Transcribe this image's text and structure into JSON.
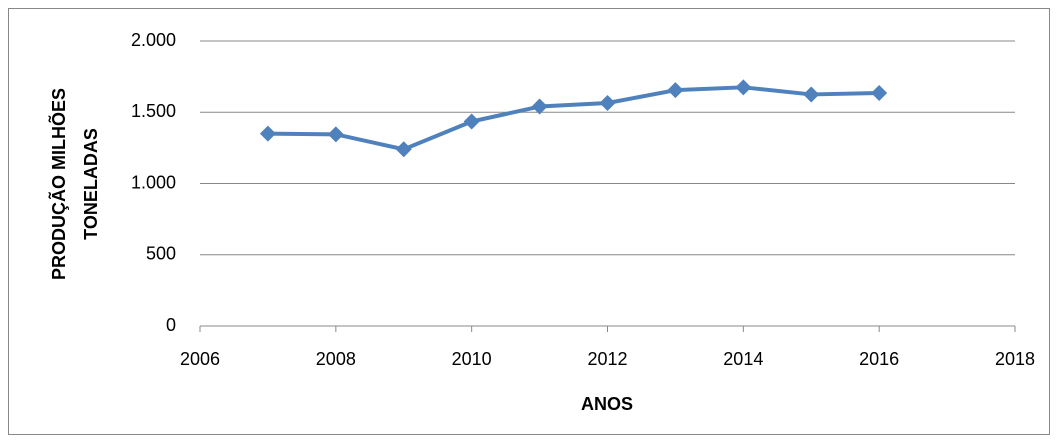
{
  "chart_data": {
    "type": "line",
    "x_label": "ANOS",
    "y_label": [
      "PRODUÇÃO MILHÕES",
      "TONELADAS"
    ],
    "x": [
      2007,
      2008,
      2009,
      2010,
      2011,
      2012,
      2013,
      2014,
      2015,
      2016
    ],
    "series": [
      {
        "name": "Produção",
        "color": "#4f81bd",
        "values": [
          1350,
          1345,
          1240,
          1435,
          1540,
          1565,
          1655,
          1675,
          1625,
          1635
        ]
      }
    ],
    "xlim": [
      2006,
      2018
    ],
    "xticks": [
      2006,
      2008,
      2010,
      2012,
      2014,
      2016,
      2018
    ],
    "ylim": [
      0,
      2000
    ],
    "yticks": [
      0,
      500,
      {
        "value": 1000,
        "label": "1.000"
      },
      {
        "value": 1500,
        "label": "1.500"
      },
      {
        "value": 2000,
        "label": "2.000"
      }
    ],
    "grid": true
  }
}
